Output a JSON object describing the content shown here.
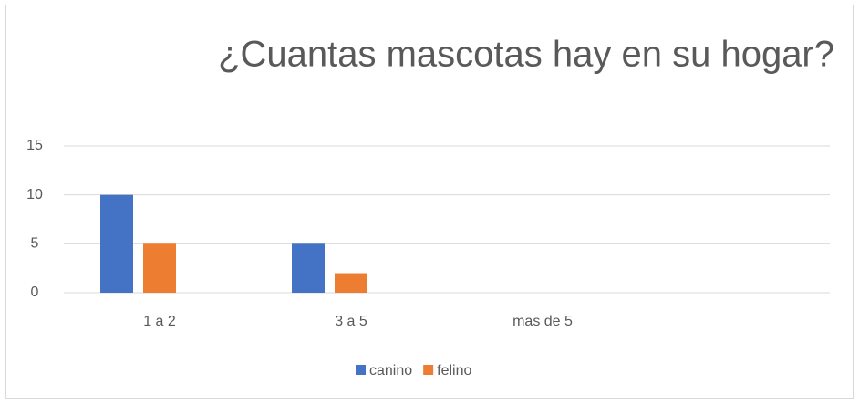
{
  "chart_data": {
    "type": "bar",
    "title": "¿Cuantas mascotas hay en su hogar?",
    "categories": [
      "1 a 2",
      "3 a 5",
      "mas de 5",
      null
    ],
    "series": [
      {
        "name": "canino",
        "color": "#4472c4",
        "values": [
          10,
          5,
          0,
          null
        ]
      },
      {
        "name": "felino",
        "color": "#ed7d31",
        "values": [
          5,
          2,
          0,
          null
        ]
      }
    ],
    "ylim": [
      0,
      15
    ],
    "yticks": [
      0,
      5,
      10,
      15
    ],
    "grid": true,
    "legend": "bottom"
  }
}
